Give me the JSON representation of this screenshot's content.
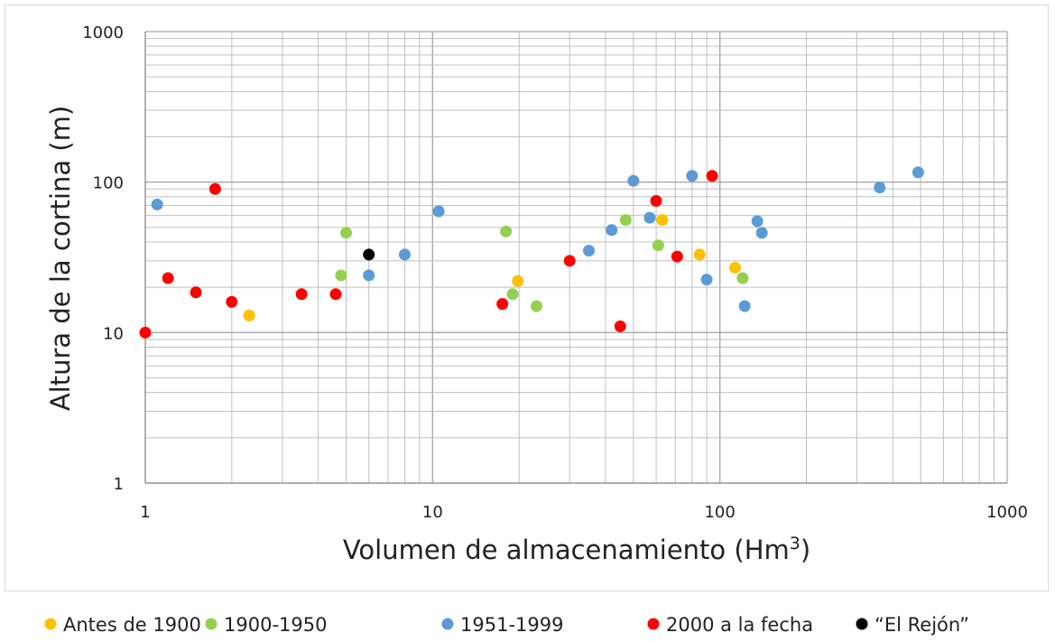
{
  "chart_data": {
    "type": "scatter",
    "xlabel": "Volumen de almacenamiento (Hm",
    "xlabel_sup": "3",
    "xlabel_end": ")",
    "ylabel": "Altura de la cortina (m)",
    "xscale": "log",
    "yscale": "log",
    "xlim": [
      1,
      1000
    ],
    "ylim": [
      1,
      1000
    ],
    "x_ticks": [
      "1",
      "10",
      "100",
      "1000"
    ],
    "y_ticks": [
      "1",
      "10",
      "100",
      "1000"
    ],
    "grid": true,
    "legend_position": "bottom",
    "series": [
      {
        "name": "Antes de 1900",
        "color": "#FFC000",
        "points": [
          [
            2.3,
            13
          ],
          [
            19.8,
            22
          ],
          [
            63,
            56
          ],
          [
            85,
            33
          ],
          [
            113,
            27
          ]
        ]
      },
      {
        "name": "1900-1950",
        "color": "#92D050",
        "points": [
          [
            4.8,
            24
          ],
          [
            5,
            46
          ],
          [
            18,
            47
          ],
          [
            19,
            18
          ],
          [
            23,
            15
          ],
          [
            47,
            56
          ],
          [
            61,
            38
          ],
          [
            120,
            23
          ]
        ]
      },
      {
        "name": "1951-1999",
        "color": "#5B9BD5",
        "points": [
          [
            1.1,
            71
          ],
          [
            6,
            24
          ],
          [
            8,
            33
          ],
          [
            10.5,
            64
          ],
          [
            35,
            35
          ],
          [
            42,
            48
          ],
          [
            50,
            102
          ],
          [
            57,
            58
          ],
          [
            80,
            110
          ],
          [
            90,
            22.5
          ],
          [
            122,
            15
          ],
          [
            135,
            55
          ],
          [
            140,
            46
          ],
          [
            360,
            92
          ],
          [
            490,
            116
          ]
        ]
      },
      {
        "name": "2000 a la fecha",
        "color": "#FF0000",
        "points": [
          [
            1,
            10
          ],
          [
            1.2,
            23
          ],
          [
            1.5,
            18.5
          ],
          [
            1.75,
            90
          ],
          [
            2,
            16
          ],
          [
            3.5,
            18
          ],
          [
            4.6,
            18
          ],
          [
            17.5,
            15.5
          ],
          [
            30,
            30
          ],
          [
            45,
            11
          ],
          [
            60,
            75
          ],
          [
            71,
            32
          ],
          [
            94,
            110
          ]
        ]
      },
      {
        "name": "“El Rejón”",
        "color": "#000000",
        "points": [
          [
            6,
            33
          ]
        ]
      }
    ]
  }
}
